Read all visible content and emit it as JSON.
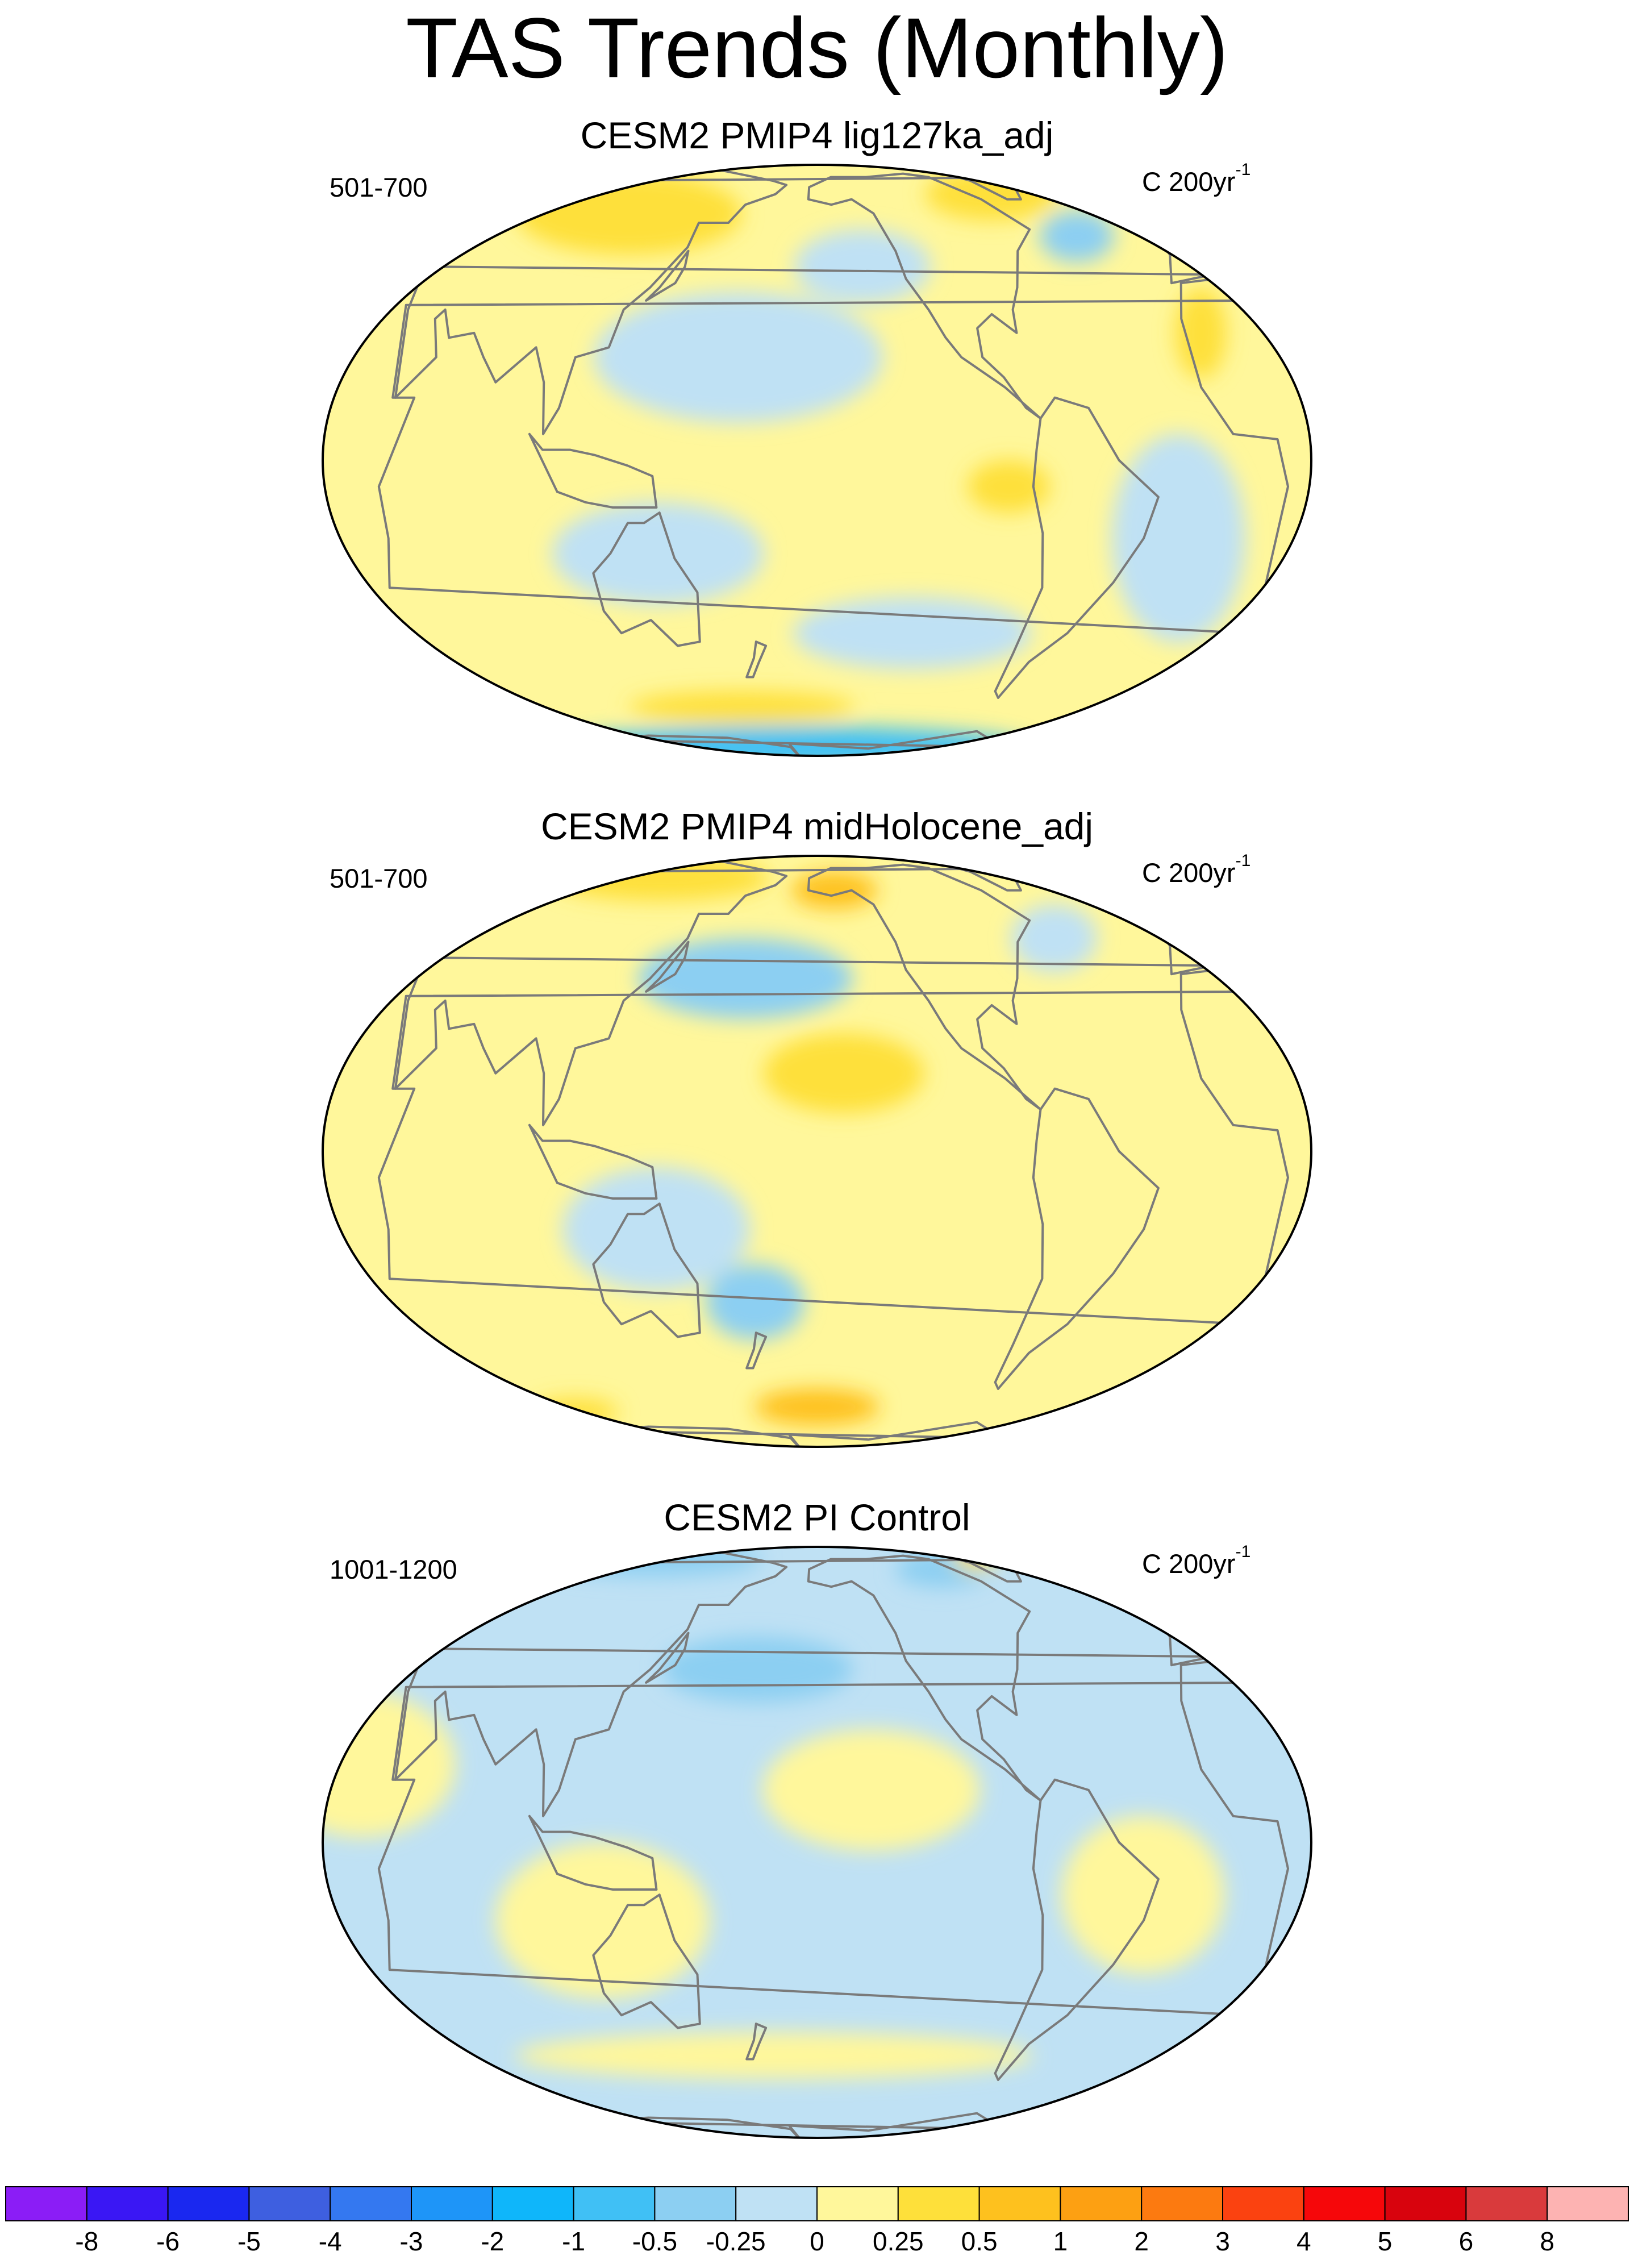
{
  "figure": {
    "title": "TAS Trends (Monthly)"
  },
  "panels": [
    {
      "title": "CESM2 PMIP4 lig127ka_adj",
      "period": "501-700",
      "units": "C 200yr",
      "units_exponent": "-1",
      "background_level": "0.25",
      "anomalies": [
        {
          "lon": 100,
          "lat": 55,
          "dlon": 60,
          "dlat": 18,
          "level": "0.5"
        },
        {
          "lon": -55,
          "lat": 62,
          "dlon": 40,
          "dlat": 14,
          "level": "0.5"
        },
        {
          "lon": -35,
          "lat": 48,
          "dlon": 18,
          "dlat": 8,
          "level": "-0.5"
        },
        {
          "lon": -10,
          "lat": 25,
          "dlon": 10,
          "dlat": 10,
          "level": "0.5"
        },
        {
          "lon": 170,
          "lat": 20,
          "dlon": 55,
          "dlat": 14,
          "level": "-0.25"
        },
        {
          "lon": -140,
          "lat": 40,
          "dlon": 30,
          "dlat": 10,
          "level": "-0.25"
        },
        {
          "lon": 140,
          "lat": -18,
          "dlon": 40,
          "dlat": 10,
          "level": "-0.25"
        },
        {
          "lon": -120,
          "lat": -35,
          "dlon": 50,
          "dlat": 8,
          "level": "-0.25"
        },
        {
          "lon": -90,
          "lat": -5,
          "dlon": 15,
          "dlat": 5,
          "level": "0.5"
        },
        {
          "lon": -25,
          "lat": -15,
          "dlon": 25,
          "dlat": 20,
          "level": "-0.25"
        },
        {
          "lon": 180,
          "lat": -72,
          "dlon": 180,
          "dlat": 10,
          "level": "-1"
        },
        {
          "lon": 160,
          "lat": -55,
          "dlon": 60,
          "dlat": 5,
          "level": "0.5"
        }
      ]
    },
    {
      "title": "CESM2 PMIP4 midHolocene_adj",
      "period": "501-700",
      "units": "C 200yr",
      "units_exponent": "-1",
      "background_level": "0.25",
      "anomalies": [
        {
          "lon": 100,
          "lat": 65,
          "dlon": 70,
          "dlat": 14,
          "level": "0.5"
        },
        {
          "lon": -150,
          "lat": 60,
          "dlon": 25,
          "dlat": 8,
          "level": "1"
        },
        {
          "lon": 170,
          "lat": 35,
          "dlon": 45,
          "dlat": 10,
          "level": "-0.5"
        },
        {
          "lon": -50,
          "lat": 45,
          "dlon": 20,
          "dlat": 10,
          "level": "-0.25"
        },
        {
          "lon": -150,
          "lat": 15,
          "dlon": 30,
          "dlat": 8,
          "level": "0.5"
        },
        {
          "lon": 140,
          "lat": -15,
          "dlon": 35,
          "dlat": 12,
          "level": "-0.25"
        },
        {
          "lon": 175,
          "lat": -30,
          "dlon": 20,
          "dlat": 8,
          "level": "-0.5"
        },
        {
          "lon": -160,
          "lat": -58,
          "dlon": 35,
          "dlat": 6,
          "level": "1"
        },
        {
          "lon": 60,
          "lat": -60,
          "dlon": 25,
          "dlat": 5,
          "level": "0.5"
        }
      ]
    },
    {
      "title": "CESM2 PI Control",
      "period": "1001-1200",
      "units": "C 200yr",
      "units_exponent": "-1",
      "background_level": "-0.25",
      "anomalies": [
        {
          "lon": 80,
          "lat": 70,
          "dlon": 80,
          "dlat": 15,
          "level": "-0.5"
        },
        {
          "lon": -80,
          "lat": 65,
          "dlon": 30,
          "dlat": 10,
          "level": "-0.5"
        },
        {
          "lon": -40,
          "lat": 72,
          "dlon": 10,
          "dlat": 6,
          "level": "0.5"
        },
        {
          "lon": 175,
          "lat": 35,
          "dlon": 40,
          "dlat": 8,
          "level": "-0.5"
        },
        {
          "lon": 30,
          "lat": 15,
          "dlon": 35,
          "dlat": 15,
          "level": "0.25"
        },
        {
          "lon": -140,
          "lat": 10,
          "dlon": 40,
          "dlat": 12,
          "level": "0.25"
        },
        {
          "lon": 120,
          "lat": -15,
          "dlon": 40,
          "dlat": 15,
          "level": "0.25"
        },
        {
          "lon": -40,
          "lat": -10,
          "dlon": 30,
          "dlat": 15,
          "level": "0.25"
        },
        {
          "lon": 180,
          "lat": -45,
          "dlon": 120,
          "dlat": 6,
          "level": "0.25"
        }
      ]
    }
  ],
  "colorbar": {
    "labels": [
      "-8",
      "-6",
      "-5",
      "-4",
      "-3",
      "-2",
      "-1",
      "-0.5",
      "-0.25",
      "0",
      "0.25",
      "0.5",
      "1",
      "2",
      "3",
      "4",
      "5",
      "6",
      "8"
    ],
    "bins": [
      {
        "label": "< -8",
        "color": "#8b1df6"
      },
      {
        "label": "-8 to -6",
        "color": "#3a17f4"
      },
      {
        "label": "-6 to -5",
        "color": "#1a28f0"
      },
      {
        "label": "-5 to -4",
        "color": "#3e5fe0"
      },
      {
        "label": "-4 to -3",
        "color": "#3478f0"
      },
      {
        "label": "-3 to -2",
        "color": "#1e95f8"
      },
      {
        "label": "-2 to -1",
        "color": "#0fb6fa"
      },
      {
        "label": "-1 to -0.5",
        "color": "#40c0f5"
      },
      {
        "label": "-0.5 to -0.25",
        "color": "#8ccff2"
      },
      {
        "label": "-0.25 to 0",
        "color": "#bfe1f4"
      },
      {
        "label": "0 to 0.25",
        "color": "#fff79b"
      },
      {
        "label": "0.25 to 0.5",
        "color": "#fee03a"
      },
      {
        "label": "0.5 to 1",
        "color": "#fec11e"
      },
      {
        "label": "1 to 2",
        "color": "#fda012"
      },
      {
        "label": "2 to 3",
        "color": "#fc7a10"
      },
      {
        "label": "3 to 4",
        "color": "#fb4210"
      },
      {
        "label": "4 to 5",
        "color": "#f6070a"
      },
      {
        "label": "5 to 6",
        "color": "#d8030d"
      },
      {
        "label": "6 to 8",
        "color": "#d93a3c"
      },
      {
        "label": "> 8",
        "color": "#fdb3b2"
      }
    ]
  },
  "colors": {
    "coastline": "#7a7a7a",
    "map_border": "#000000"
  }
}
